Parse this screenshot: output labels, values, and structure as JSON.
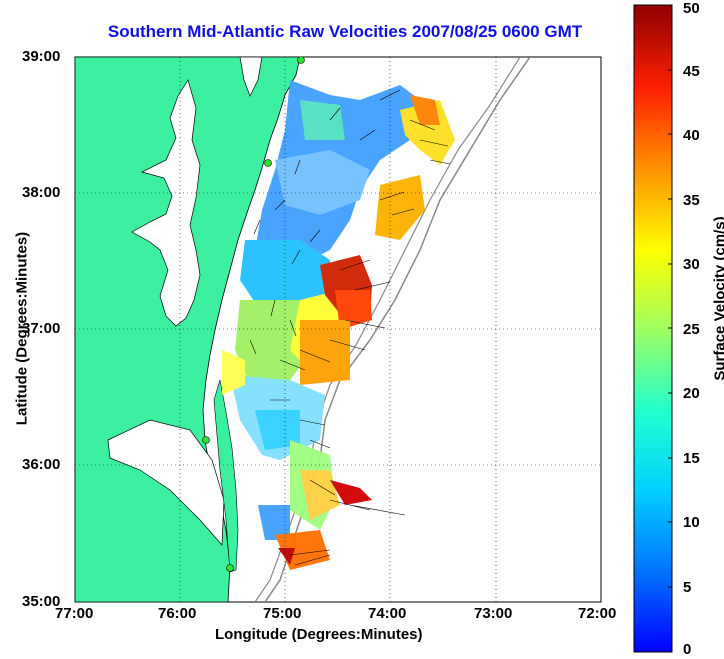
{
  "title": "Southern Mid-Atlantic Raw Velocities 2007/08/25 0600 GMT",
  "xlabel": "Longitude (Degrees:Minutes)",
  "ylabel": "Latitude (Degrees:Minutes)",
  "colorbar": {
    "label": "Surface Velocity (cm/s)",
    "ticks": [
      "0",
      "5",
      "10",
      "15",
      "20",
      "25",
      "30",
      "35",
      "40",
      "45",
      "50"
    ],
    "min": 0,
    "max": 50
  },
  "x_ticks": [
    "77:00",
    "76:00",
    "75:00",
    "74:00",
    "73:00",
    "72:00"
  ],
  "y_ticks": [
    "39:00",
    "38:00",
    "37:00",
    "36:00",
    "35:00"
  ],
  "colors": {
    "land": "#3cf0a0",
    "title": "#1010e0",
    "station": "#30e030"
  }
}
